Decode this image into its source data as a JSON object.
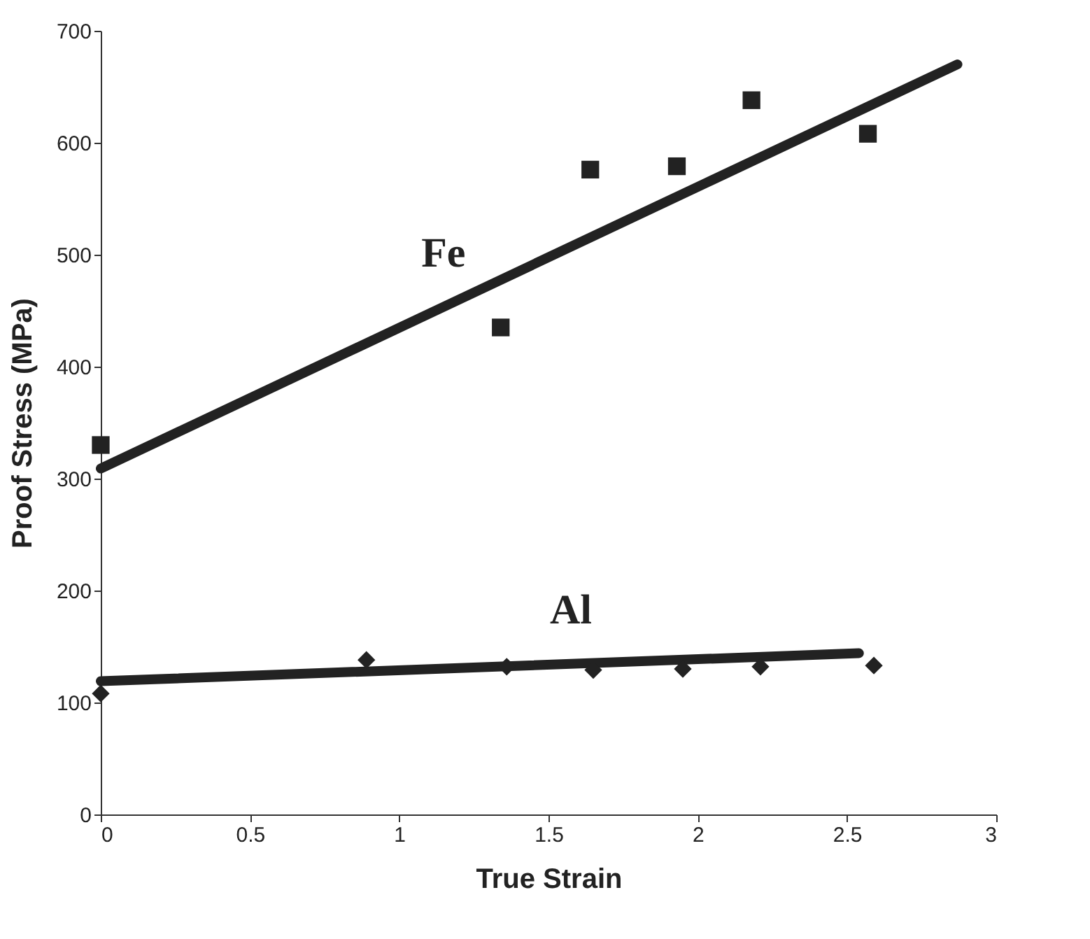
{
  "chart_data": {
    "type": "scatter",
    "xlabel": "True Strain",
    "ylabel": "Proof Stress (MPa)",
    "xlim": [
      0,
      3
    ],
    "xticks": [
      0,
      0.5,
      1,
      1.5,
      2,
      2.5,
      3
    ],
    "ylim": [
      0,
      700
    ],
    "yticks": [
      0,
      100,
      200,
      300,
      400,
      500,
      600,
      700
    ],
    "grid": false,
    "series": [
      {
        "name": "Fe",
        "marker": "square",
        "color": "#222222",
        "x": [
          0,
          1.34,
          1.64,
          1.93,
          2.18,
          2.57
        ],
        "values": [
          330,
          435,
          576,
          579,
          638,
          608
        ]
      },
      {
        "type": "line",
        "marker": "none",
        "line_style": "solid",
        "color": "#222222",
        "x": [
          0,
          2.87
        ],
        "values": [
          309,
          670
        ]
      },
      {
        "name": "Al",
        "marker": "diamond",
        "color": "#222222",
        "x": [
          0,
          0.89,
          1.36,
          1.65,
          1.95,
          2.21,
          2.59
        ],
        "values": [
          108,
          138,
          132,
          129,
          130,
          132,
          133
        ]
      },
      {
        "type": "line",
        "marker": "none",
        "line_style": "solid",
        "color": "#222222",
        "x": [
          0,
          2.54
        ],
        "values": [
          119,
          144
        ]
      }
    ]
  }
}
